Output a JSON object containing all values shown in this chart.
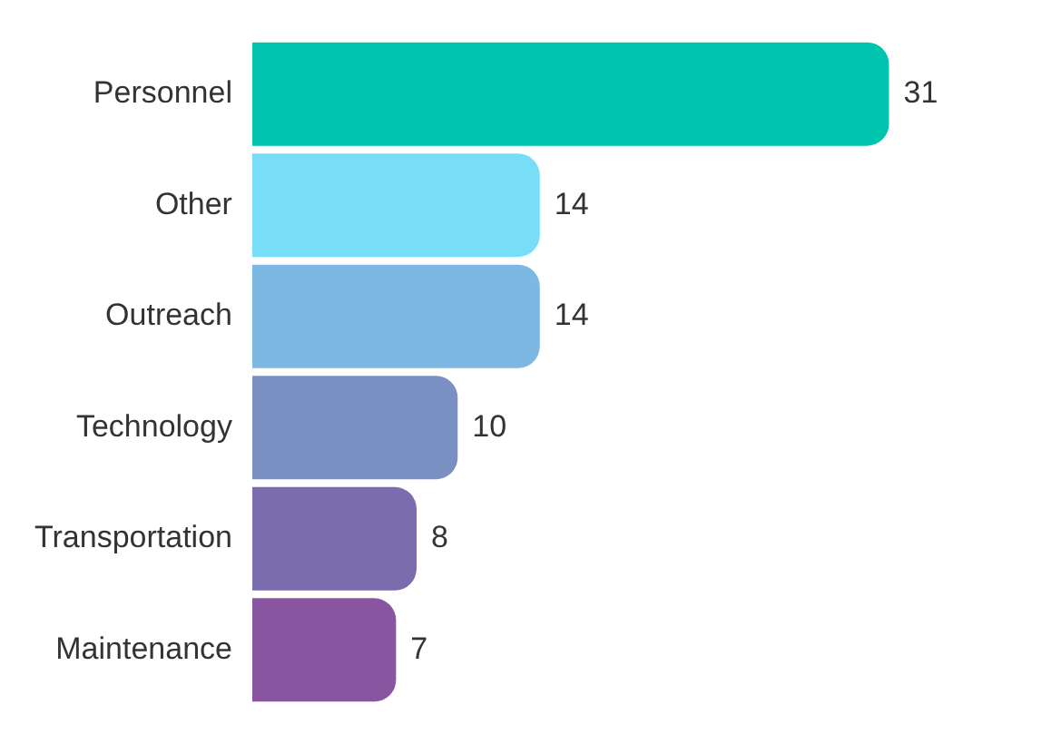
{
  "chart_data": {
    "type": "bar",
    "orientation": "horizontal",
    "categories": [
      "Personnel",
      "Other",
      "Outreach",
      "Technology",
      "Transportation",
      "Maintenance"
    ],
    "values": [
      31,
      14,
      14,
      10,
      8,
      7
    ],
    "colors": [
      "#00c4ad",
      "#78def8",
      "#7db8e5",
      "#7a90c2",
      "#7b6dad",
      "#8a55a0"
    ],
    "data_labels": true,
    "legend": false
  }
}
